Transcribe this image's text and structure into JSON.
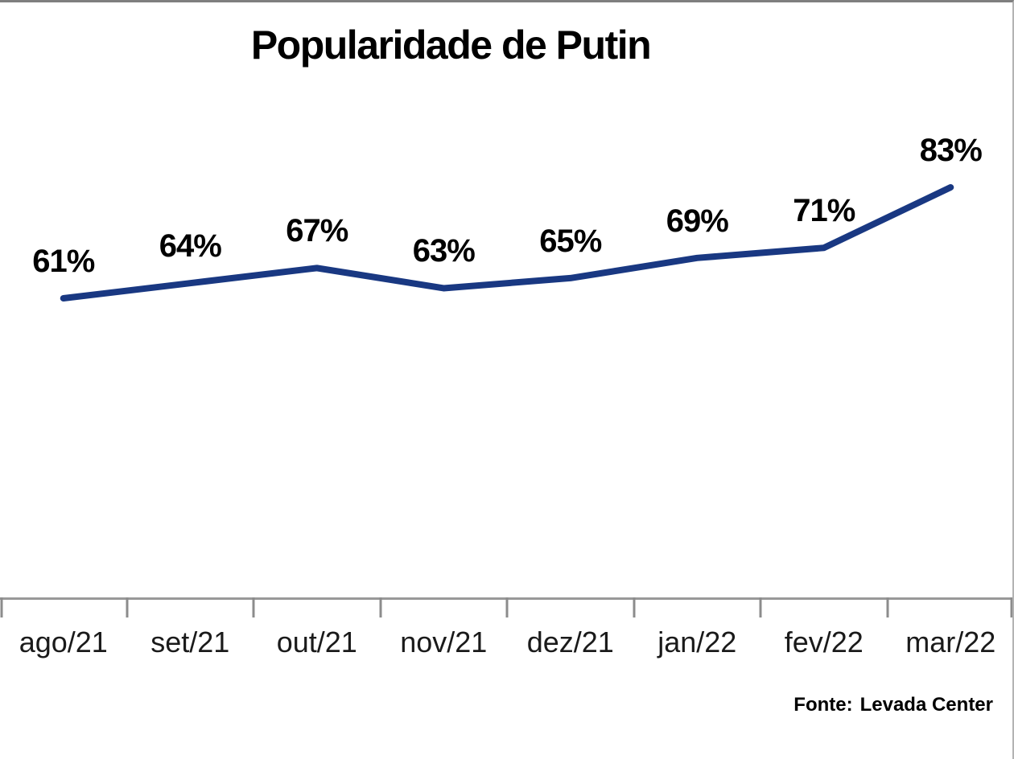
{
  "title": "Popularidade de Putin",
  "source": {
    "prefix": "Fonte:",
    "name": "Levada Center"
  },
  "colors": {
    "line": "#193882",
    "axis": "#8c8c8c",
    "label_text": "#000000",
    "tick_label_text": "#1a1a1a"
  },
  "chart_data": {
    "type": "line",
    "title": "Popularidade de Putin",
    "categories": [
      "ago/21",
      "set/21",
      "out/21",
      "nov/21",
      "dez/21",
      "jan/22",
      "fev/22",
      "mar/22"
    ],
    "series": [
      {
        "name": "Popularidade de Putin",
        "values": [
          61,
          64,
          67,
          63,
          65,
          69,
          71,
          83
        ],
        "labels": [
          "61%",
          "64%",
          "67%",
          "63%",
          "65%",
          "69%",
          "71%",
          "83%"
        ],
        "color": "#193882"
      }
    ],
    "xlabel": "",
    "ylabel": "",
    "ylim": [
      55,
      90
    ],
    "y_axis_visible": false,
    "grid": false,
    "legend_position": "none",
    "data_labels": "above points",
    "source_note": "Fonte: Levada Center"
  }
}
